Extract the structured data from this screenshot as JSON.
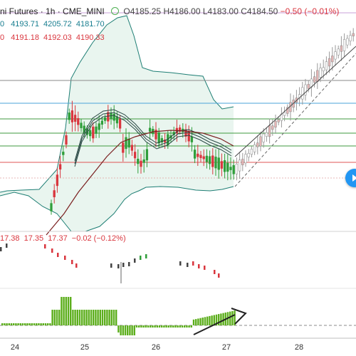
{
  "header": {
    "symbol_title": "ni Futures · 1h · CME_MINI",
    "ohlc": {
      "open": "O4185.25",
      "high": "H4186.00",
      "low": "L4183.00",
      "close": "C4184.50",
      "change": "−0.50 (−0.01%)"
    },
    "row2": [
      "0",
      "4193.71",
      "4205.72",
      "4181.70"
    ],
    "row3": [
      "0",
      "4191.18",
      "4192.03",
      "4190.33"
    ]
  },
  "indicator": {
    "values": [
      "17.38",
      "17.35",
      "17.37",
      "−0.02 (−0.12%)"
    ]
  },
  "time_axis": {
    "labels": [
      "24",
      "25",
      "26",
      "27",
      "28"
    ]
  },
  "buttons": {
    "scroll_to_realtime": "scroll-to-realtime"
  },
  "colors": {
    "up": "#2f9e3a",
    "down": "#d9363e",
    "band": "#1e7e74",
    "ma": "#7a1f1f",
    "hline_red": "#e05555",
    "hline_green": "#3f9a3f",
    "hline_blue": "#4aa3d8",
    "hist": "#5cae1c",
    "accent": "#2196f3"
  }
}
